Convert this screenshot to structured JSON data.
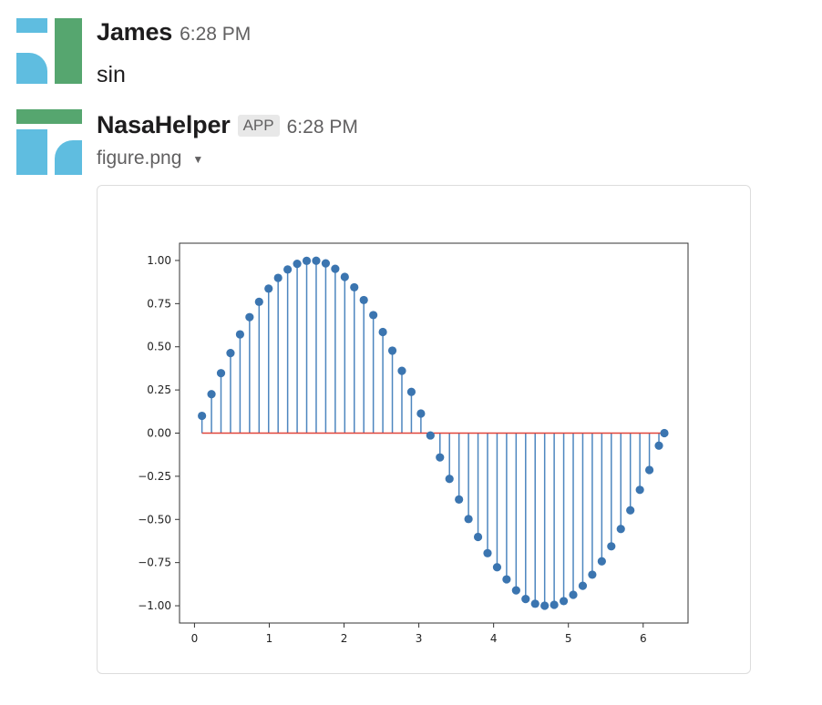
{
  "messages": [
    {
      "author": "James",
      "time": "6:28 PM",
      "text": "sin",
      "avatar": "avatar-icon"
    },
    {
      "author": "NasaHelper",
      "badge": "APP",
      "time": "6:28 PM",
      "avatar": "avatar-icon",
      "file": {
        "name": "figure.png",
        "menu_icon": "caret-down-icon"
      }
    }
  ],
  "colors": {
    "avatar_blue": "#5fbde0",
    "avatar_green": "#56a66f",
    "stem_blue": "#4d86bf",
    "marker_blue": "#3b75b0",
    "baseline_red": "#e0443a"
  },
  "chart_data": {
    "type": "stem",
    "x_tick_labels": [
      "0",
      "1",
      "2",
      "3",
      "4",
      "5",
      "6"
    ],
    "y_tick_labels": [
      "1.00",
      "0.75",
      "0.50",
      "0.25",
      "0.00",
      "−0.25",
      "−0.50",
      "−0.75",
      "−1.00"
    ],
    "y_ticks": [
      1.0,
      0.75,
      0.5,
      0.25,
      0.0,
      -0.25,
      -0.5,
      -0.75,
      -1.0
    ],
    "x_ticks": [
      0,
      1,
      2,
      3,
      4,
      5,
      6
    ],
    "xlim": [
      -0.2,
      6.6
    ],
    "ylim": [
      -1.1,
      1.1
    ],
    "baseline": 0,
    "x": [
      0.1,
      0.2273,
      0.3546,
      0.4819,
      0.6092,
      0.7365,
      0.8638,
      0.9911,
      1.1184,
      1.2457,
      1.373,
      1.5003,
      1.6276,
      1.7549,
      1.8822,
      2.0095,
      2.1368,
      2.2641,
      2.3914,
      2.5187,
      2.646,
      2.7733,
      2.9006,
      3.0279,
      3.1552,
      3.2825,
      3.4098,
      3.5371,
      3.6644,
      3.7917,
      3.919,
      4.0463,
      4.1736,
      4.3009,
      4.4282,
      4.5555,
      4.6828,
      4.8101,
      4.9374,
      5.0647,
      5.192,
      5.3193,
      5.4466,
      5.5739,
      5.7012,
      5.8285,
      5.9558,
      6.0831,
      6.2104,
      6.2832
    ],
    "y": [
      0.1,
      0.2254,
      0.3473,
      0.4635,
      0.5721,
      0.6717,
      0.7603,
      0.8367,
      0.8992,
      0.9475,
      0.9805,
      0.9976,
      0.9985,
      0.9833,
      0.9517,
      0.9049,
      0.8445,
      0.7707,
      0.6836,
      0.5857,
      0.4778,
      0.3609,
      0.2387,
      0.1133,
      -0.0136,
      -0.1407,
      -0.2653,
      -0.3845,
      -0.4977,
      -0.6013,
      -0.6954,
      -0.7769,
      -0.847,
      -0.9107,
      -0.9609,
      -0.9883,
      -0.9996,
      -0.9946,
      -0.973,
      -0.9366,
      -0.8845,
      -0.82,
      -0.7425,
      -0.6558,
      -0.5552,
      -0.4472,
      -0.3287,
      -0.2135,
      -0.0725,
      0.0
    ]
  }
}
